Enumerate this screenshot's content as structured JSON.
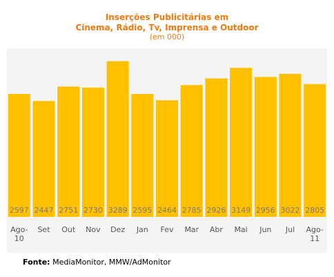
{
  "title_line1": "Inserções Publicitárias em",
  "title_line2": "Cinema, Rádio, Tv, Imprensa e Outdoor",
  "subtitle": "(em 000)",
  "source_label": "Fonte:",
  "source_text": "MediaMonitor, MMW/AdMonitor",
  "colors": {
    "bar": "#ffc000",
    "title": "#f07a12",
    "value_label": "#7a7a7a",
    "axis_label": "#555555",
    "plot_bg": "#f4f4f4"
  },
  "chart_data": {
    "type": "bar",
    "categories": [
      "Ago-10",
      "Set",
      "Out",
      "Nov",
      "Dez",
      "Jan",
      "Fev",
      "Mar",
      "Abr",
      "Mai",
      "Jun",
      "Jul",
      "Ago-11"
    ],
    "x_tick_lines": [
      [
        "Ago-",
        "10"
      ],
      [
        "Set"
      ],
      [
        "Out"
      ],
      [
        "Nov"
      ],
      [
        "Dez"
      ],
      [
        "Jan"
      ],
      [
        "Fev"
      ],
      [
        "Mar"
      ],
      [
        "Abr"
      ],
      [
        "Mai"
      ],
      [
        "Jun"
      ],
      [
        "Jul"
      ],
      [
        "Ago-",
        "11"
      ]
    ],
    "values": [
      2597,
      2447,
      2751,
      2730,
      3289,
      2595,
      2464,
      2785,
      2926,
      3149,
      2956,
      3022,
      2805
    ],
    "value_labels": [
      "2597",
      "2447",
      "2751",
      "2730",
      "3289",
      "2595",
      "2464",
      "2785",
      "2926",
      "3149",
      "2956",
      "3022",
      "2805"
    ],
    "title": "Inserções Publicitárias em Cinema, Rádio, Tv, Imprensa e Outdoor",
    "subtitle": "(em 000)",
    "xlabel": "",
    "ylabel": "",
    "ylim": [
      0,
      3560
    ],
    "grid": false,
    "legend": "none",
    "data_labels_position": "inside-bottom"
  }
}
